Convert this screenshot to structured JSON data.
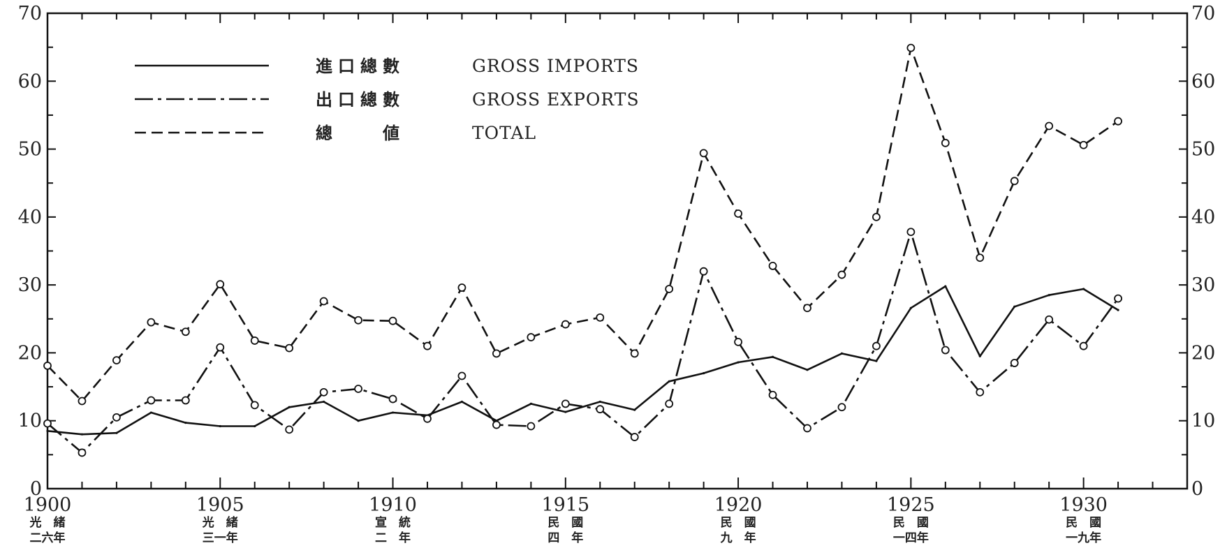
{
  "chart_data": {
    "type": "line",
    "xlim": [
      1900,
      1933
    ],
    "ylim": [
      0,
      70
    ],
    "grid": false,
    "y_ticks": [
      0,
      10,
      20,
      30,
      40,
      50,
      60,
      70
    ],
    "y_tick_labels": [
      "0",
      "10",
      "20",
      "30",
      "40",
      "50",
      "60",
      "70"
    ],
    "right_y_tick_labels": [
      "0",
      "10",
      "20",
      "30",
      "40",
      "50",
      "60",
      "70"
    ],
    "x_ticks": [
      1900,
      1905,
      1910,
      1915,
      1920,
      1925,
      1930
    ],
    "x_tick_labels": [
      "1900",
      "1905",
      "1910",
      "1915",
      "1920",
      "1925",
      "1930"
    ],
    "x_tick_sublabels": [
      [
        "光　緒",
        "二六年"
      ],
      [
        "光　緒",
        "三一年"
      ],
      [
        "宣　統",
        "二　年"
      ],
      [
        "民　國",
        "四　年"
      ],
      [
        "民　國",
        "九　年"
      ],
      [
        "民　國",
        "一四年"
      ],
      [
        "民　國",
        "一九年"
      ]
    ],
    "legend": {
      "placement": "top-left",
      "entries": [
        {
          "cn": "進口總數",
          "en": "GROSS IMPORTS",
          "style": "solid"
        },
        {
          "cn": "出口總數",
          "en": "GROSS EXPORTS",
          "style": "dash-dot"
        },
        {
          "cn": "總　　値",
          "en": "TOTAL",
          "style": "dashed"
        }
      ]
    },
    "x": [
      1900,
      1901,
      1902,
      1903,
      1904,
      1905,
      1906,
      1907,
      1908,
      1909,
      1910,
      1911,
      1912,
      1913,
      1914,
      1915,
      1916,
      1917,
      1918,
      1919,
      1920,
      1921,
      1922,
      1923,
      1924,
      1925,
      1926,
      1927,
      1928,
      1929,
      1930,
      1931
    ],
    "series": [
      {
        "name": "GROSS IMPORTS",
        "style": "solid",
        "markers": false,
        "values": [
          8.5,
          8.0,
          8.2,
          11.2,
          9.7,
          9.2,
          9.2,
          12.0,
          12.8,
          10.0,
          11.2,
          10.8,
          12.8,
          10.0,
          12.5,
          11.3,
          12.8,
          11.6,
          15.8,
          17.0,
          18.6,
          19.4,
          17.5,
          19.9,
          18.8,
          26.6,
          29.8,
          19.5,
          26.8,
          28.5,
          29.4,
          26.3
        ]
      },
      {
        "name": "GROSS EXPORTS",
        "style": "dash-dot",
        "markers": true,
        "values": [
          9.6,
          5.3,
          10.5,
          13.0,
          13.0,
          20.8,
          12.3,
          8.7,
          14.2,
          14.7,
          13.2,
          10.3,
          16.6,
          9.4,
          9.2,
          12.5,
          11.7,
          7.6,
          12.5,
          32.0,
          21.6,
          13.8,
          8.9,
          12.0,
          21.0,
          37.8,
          20.4,
          14.2,
          18.5,
          24.9,
          21.0,
          28.0
        ]
      },
      {
        "name": "TOTAL",
        "style": "dashed",
        "markers": true,
        "values": [
          18.1,
          12.9,
          18.9,
          24.5,
          23.1,
          30.1,
          21.8,
          20.7,
          27.6,
          24.8,
          24.7,
          21.0,
          29.6,
          19.9,
          22.3,
          24.2,
          25.2,
          19.9,
          29.4,
          49.4,
          40.5,
          32.8,
          26.6,
          31.5,
          40.0,
          64.9,
          50.9,
          34.0,
          45.3,
          53.4,
          50.6,
          54.1
        ]
      }
    ]
  }
}
